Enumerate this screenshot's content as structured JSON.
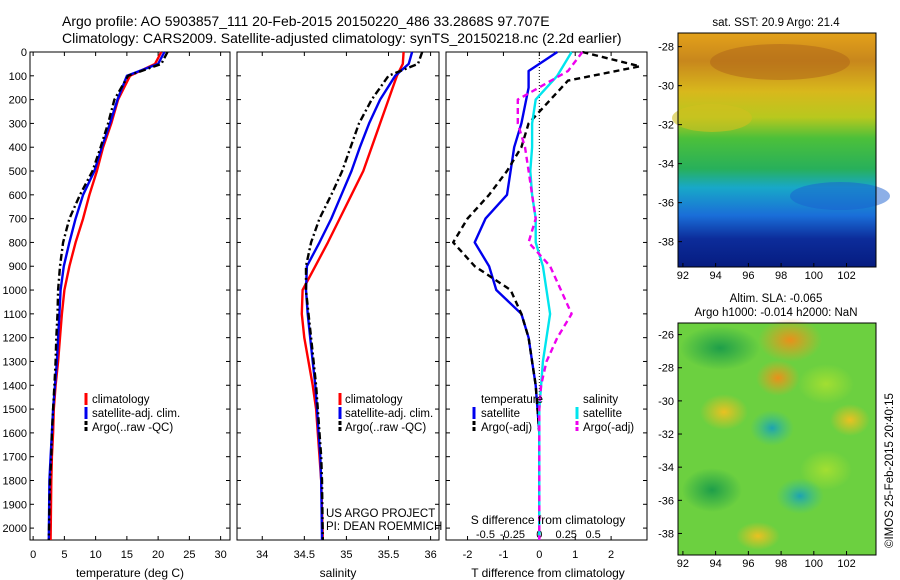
{
  "header": {
    "line1": "Argo profile: AO 5903857_111 20-Feb-2015 20150220_486 33.2868S 97.707E",
    "line2": "Climatology: CARS2009. Satellite-adjusted climatology: synTS_20150218.nc (2.2d earlier)"
  },
  "colors": {
    "climatology": "#ff0000",
    "satellite": "#0000ee",
    "argo": "#000000",
    "sat_salinity": "#00e5ee",
    "argo_salinity": "#ee00ee"
  },
  "chart_data": [
    {
      "type": "line",
      "name": "temperature-profile",
      "xlabel": "temperature (deg C)",
      "ylabel": "",
      "xlim": [
        -0.5,
        31.5
      ],
      "ylim": [
        0,
        2050
      ],
      "xticks": [
        0,
        5,
        10,
        15,
        20,
        25,
        30
      ],
      "yticks": [
        0,
        100,
        200,
        300,
        400,
        500,
        600,
        700,
        800,
        900,
        1000,
        1100,
        1200,
        1300,
        1400,
        1500,
        1600,
        1700,
        1800,
        1900,
        2000
      ],
      "legend": {
        "position": "bottom-right",
        "entries": [
          "climatology",
          "satellite-adj. clim.",
          "Argo(..raw -QC)"
        ]
      },
      "series": [
        {
          "name": "climatology",
          "style": "solid",
          "x": [
            20.5,
            19.5,
            15.5,
            13.6,
            12.5,
            11.2,
            10.2,
            9.0,
            8.0,
            6.8,
            5.8,
            5.0,
            4.6,
            4.3,
            4.0,
            3.6,
            3.3,
            3.2,
            3.0,
            2.9,
            2.8
          ],
          "y": [
            0,
            50,
            100,
            200,
            300,
            400,
            500,
            600,
            700,
            800,
            900,
            1000,
            1100,
            1200,
            1300,
            1400,
            1500,
            1600,
            1700,
            1800,
            2050
          ]
        },
        {
          "name": "satellite-adj. clim.",
          "style": "solid",
          "x": [
            21.0,
            20.0,
            15.0,
            13.5,
            12.3,
            11.0,
            9.8,
            8.0,
            6.8,
            5.8,
            4.9,
            4.4,
            4.2,
            4.0,
            3.8,
            3.5,
            3.2,
            3.0,
            2.8,
            2.6,
            2.5
          ],
          "y": [
            0,
            50,
            100,
            200,
            300,
            400,
            500,
            600,
            700,
            800,
            900,
            1000,
            1100,
            1200,
            1300,
            1400,
            1500,
            1600,
            1700,
            1800,
            2050
          ]
        },
        {
          "name": "Argo(..raw -QC)",
          "style": "dashdot",
          "x": [
            21.5,
            20.5,
            15.2,
            13.0,
            12.0,
            10.8,
            9.5,
            7.5,
            5.8,
            4.8,
            4.3,
            4.0,
            3.9,
            3.7,
            3.6,
            3.4,
            3.2,
            3.0,
            2.9,
            2.7,
            2.5
          ],
          "y": [
            0,
            50,
            100,
            200,
            300,
            400,
            500,
            600,
            700,
            800,
            900,
            1000,
            1100,
            1200,
            1300,
            1400,
            1500,
            1600,
            1700,
            1800,
            2050
          ]
        }
      ]
    },
    {
      "type": "line",
      "name": "salinity-profile",
      "xlabel": "salinity",
      "xlim": [
        33.7,
        36.1
      ],
      "ylim": [
        0,
        2050
      ],
      "xticks": [
        34,
        34.5,
        35,
        35.5,
        36
      ],
      "xtick_labels": [
        "34",
        "34.5",
        "35",
        "35.5",
        "36"
      ],
      "legend": {
        "position": "bottom-right",
        "entries": [
          "climatology",
          "satellite-adj. clim.",
          "Argo(..raw -QC)"
        ]
      },
      "annotation": [
        "US ARGO PROJECT",
        "PI: DEAN ROEMMICH"
      ],
      "series": [
        {
          "name": "climatology",
          "style": "solid",
          "x": [
            35.68,
            35.67,
            35.6,
            35.5,
            35.4,
            35.3,
            35.2,
            35.06,
            34.92,
            34.78,
            34.63,
            34.48,
            34.47,
            34.5,
            34.55,
            34.6,
            34.64,
            34.66,
            34.68,
            34.7,
            34.72
          ],
          "y": [
            0,
            50,
            100,
            200,
            300,
            400,
            500,
            600,
            700,
            800,
            900,
            1000,
            1100,
            1200,
            1300,
            1400,
            1500,
            1600,
            1700,
            1800,
            2050
          ]
        },
        {
          "name": "satellite-adj. clim.",
          "style": "solid",
          "x": [
            35.78,
            35.74,
            35.58,
            35.4,
            35.27,
            35.16,
            35.06,
            34.94,
            34.82,
            34.68,
            34.53,
            34.52,
            34.54,
            34.57,
            34.6,
            34.63,
            34.65,
            34.67,
            34.69,
            34.7,
            34.71
          ],
          "y": [
            0,
            50,
            100,
            200,
            300,
            400,
            500,
            600,
            700,
            800,
            900,
            1000,
            1100,
            1200,
            1300,
            1400,
            1500,
            1600,
            1700,
            1800,
            2050
          ]
        },
        {
          "name": "Argo(..raw -QC)",
          "style": "dashdot",
          "x": [
            35.9,
            35.85,
            35.5,
            35.3,
            35.15,
            35.05,
            34.95,
            34.82,
            34.68,
            34.58,
            34.52,
            34.52,
            34.55,
            34.58,
            34.61,
            34.64,
            34.66,
            34.68,
            34.7,
            34.71,
            34.72
          ],
          "y": [
            0,
            50,
            100,
            200,
            300,
            400,
            500,
            600,
            700,
            800,
            900,
            1000,
            1100,
            1200,
            1300,
            1400,
            1500,
            1600,
            1700,
            1800,
            2050
          ]
        }
      ]
    },
    {
      "type": "line",
      "name": "difference-profile",
      "xlabel": "T difference from climatology",
      "x2label": "S difference from climatology",
      "xlim": [
        -2.6,
        3.0
      ],
      "ylim": [
        0,
        2050
      ],
      "xticks": [
        -2,
        -1,
        0,
        1,
        2
      ],
      "x2ticks": [
        -0.5,
        -0.25,
        0,
        0.25,
        0.5
      ],
      "x2tick_labels": [
        "-0.5",
        "-0.25",
        "0",
        "0.25",
        "0.5"
      ],
      "legend": {
        "position": "bottom",
        "headers": [
          "temperature",
          "salinity"
        ],
        "entries": [
          "satellite",
          "Argo(-adj)",
          "satellite",
          "Argo(-adj)"
        ]
      },
      "series": [
        {
          "name": "temperature satellite",
          "style": "solid",
          "x": [
            0.5,
            -0.3,
            -0.3,
            -0.5,
            -0.7,
            -0.8,
            -0.9,
            -1.5,
            -1.8,
            -1.4,
            -1.2,
            -0.5,
            -0.3,
            -0.2,
            -0.1,
            -0.05,
            0,
            0,
            0,
            0
          ],
          "y": [
            0,
            80,
            150,
            300,
            400,
            500,
            600,
            700,
            800,
            900,
            1000,
            1100,
            1200,
            1300,
            1400,
            1500,
            1600,
            1700,
            1800,
            2050
          ]
        },
        {
          "name": "temperature Argo(-adj)",
          "style": "dashed",
          "x": [
            1.2,
            2.8,
            0.8,
            -0.3,
            -0.5,
            -0.9,
            -1.4,
            -2.0,
            -2.4,
            -1.8,
            -0.8,
            -0.5,
            -0.3,
            -0.2,
            -0.1,
            -0.05,
            0,
            0,
            0,
            0
          ],
          "y": [
            0,
            60,
            120,
            300,
            400,
            500,
            600,
            700,
            800,
            900,
            1000,
            1100,
            1200,
            1300,
            1400,
            1500,
            1600,
            1700,
            1800,
            2050
          ]
        },
        {
          "name": "salinity satellite",
          "style": "solid",
          "x": [
            0.9,
            0.5,
            -0.1,
            -0.2,
            -0.2,
            -0.25,
            -0.2,
            -0.1,
            -0.1,
            0.1,
            0.2,
            0.3,
            0.2,
            0.1,
            0.05,
            0,
            0,
            0,
            0
          ],
          "y": [
            0,
            100,
            200,
            300,
            400,
            500,
            600,
            700,
            800,
            900,
            1000,
            1100,
            1200,
            1300,
            1400,
            1500,
            1600,
            1700,
            2050
          ]
        },
        {
          "name": "salinity Argo(-adj)",
          "style": "dashed",
          "x": [
            1.2,
            0.8,
            -0.6,
            -0.6,
            -0.4,
            -0.3,
            -0.2,
            -0.1,
            -0.3,
            0.3,
            0.6,
            0.9,
            0.5,
            0.2,
            0.05,
            0,
            0,
            0,
            0
          ],
          "y": [
            0,
            80,
            200,
            300,
            400,
            500,
            600,
            700,
            800,
            900,
            1000,
            1100,
            1200,
            1300,
            1400,
            1500,
            1600,
            1700,
            2050
          ]
        }
      ]
    },
    {
      "type": "heatmap",
      "name": "sst-map",
      "title": "sat. SST: 20.9  Argo: 21.4",
      "xticks": [
        92,
        94,
        96,
        98,
        100,
        102
      ],
      "yticks": [
        -28,
        -30,
        -32,
        -34,
        -36,
        -38
      ],
      "xlim": [
        91.7,
        103.8
      ],
      "ylim": [
        -39.3,
        -27.3
      ]
    },
    {
      "type": "heatmap",
      "name": "sla-map",
      "title": "Altim. SLA: -0.065",
      "subtitle": "Argo h1000: -0.014  h2000: NaN",
      "xticks": [
        92,
        94,
        96,
        98,
        100,
        102
      ],
      "yticks": [
        -26,
        -28,
        -30,
        -32,
        -34,
        -36,
        -38
      ],
      "xlim": [
        91.7,
        103.8
      ],
      "ylim": [
        -39.3,
        -25.3
      ]
    }
  ],
  "footer": {
    "credit": "©IMOS 25-Feb-2015 20:40:15"
  }
}
